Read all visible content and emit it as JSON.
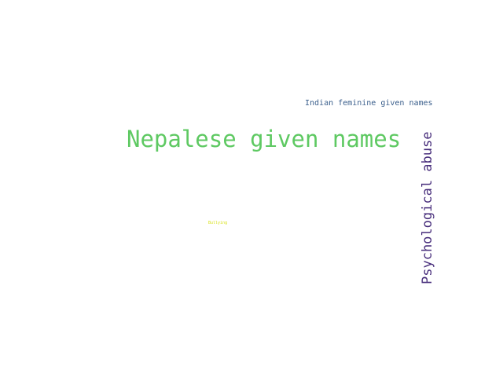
{
  "words": [
    {
      "text": "Nepalese given names",
      "color": "#5ec962"
    },
    {
      "text": "Indian feminine given names",
      "color": "#3b5f8c"
    },
    {
      "text": "Psychological abuse",
      "color": "#472d7b"
    },
    {
      "text": "Bullying",
      "color": "#d8e219"
    }
  ]
}
